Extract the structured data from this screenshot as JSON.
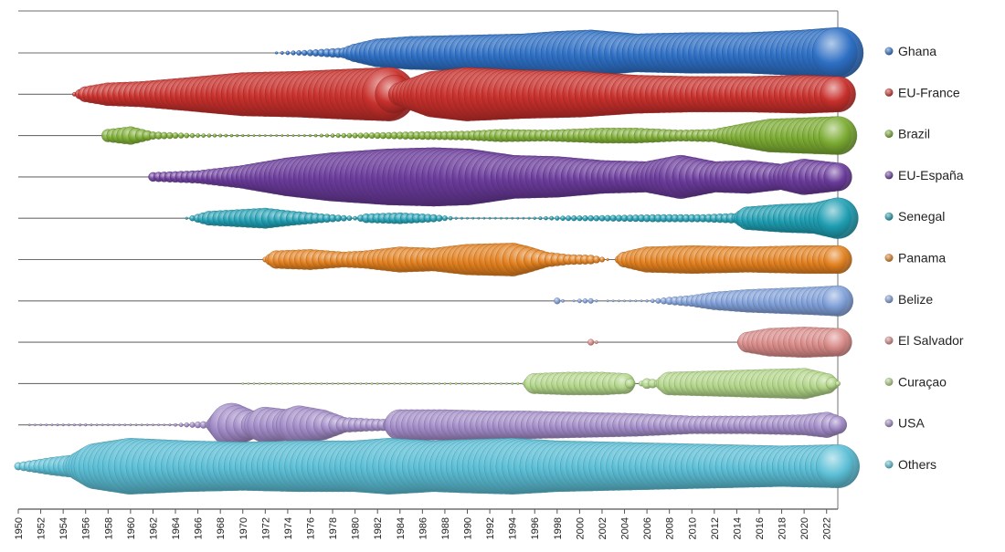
{
  "chart_data": {
    "type": "scatter",
    "title": "",
    "xlabel": "",
    "ylabel": "",
    "xlim": [
      1950,
      2023
    ],
    "x_ticks": [
      "1950",
      "1952",
      "1954",
      "1956",
      "1958",
      "1960",
      "1962",
      "1964",
      "1966",
      "1968",
      "1970",
      "1972",
      "1974",
      "1976",
      "1978",
      "1980",
      "1982",
      "1984",
      "1986",
      "1988",
      "1990",
      "1992",
      "1994",
      "1996",
      "1998",
      "2000",
      "2002",
      "2004",
      "2006",
      "2008",
      "2010",
      "2012",
      "2014",
      "2016",
      "2018",
      "2020",
      "2022"
    ],
    "legend_position": "right",
    "size_encoding": "relative magnitude (0-1)",
    "series": [
      {
        "name": "Ghana",
        "color": "#2e6fc4",
        "start": 1973,
        "end": 2023,
        "keys": [
          [
            1973,
            0.05
          ],
          [
            1976,
            0.12
          ],
          [
            1979,
            0.2
          ],
          [
            1980,
            0.35
          ],
          [
            1982,
            0.55
          ],
          [
            1985,
            0.65
          ],
          [
            1990,
            0.7
          ],
          [
            1995,
            0.75
          ],
          [
            1998,
            0.85
          ],
          [
            2001,
            0.9
          ],
          [
            2005,
            0.75
          ],
          [
            2010,
            0.8
          ],
          [
            2015,
            0.8
          ],
          [
            2020,
            0.9
          ],
          [
            2023,
            1.0
          ]
        ]
      },
      {
        "name": "EU-France",
        "color": "#c8302c",
        "start": 1955,
        "end": 2023,
        "keys": [
          [
            1955,
            0.08
          ],
          [
            1956,
            0.3
          ],
          [
            1958,
            0.45
          ],
          [
            1961,
            0.5
          ],
          [
            1965,
            0.65
          ],
          [
            1970,
            0.85
          ],
          [
            1975,
            0.9
          ],
          [
            1980,
            1.0
          ],
          [
            1983,
            1.05
          ],
          [
            1984,
            0.45
          ],
          [
            1987,
            0.9
          ],
          [
            1990,
            1.05
          ],
          [
            1995,
            0.95
          ],
          [
            2000,
            0.9
          ],
          [
            2005,
            0.75
          ],
          [
            2010,
            0.7
          ],
          [
            2015,
            0.7
          ],
          [
            2020,
            0.75
          ],
          [
            2023,
            0.7
          ]
        ]
      },
      {
        "name": "Brazil",
        "color": "#7bab32",
        "start": 1958,
        "end": 2023,
        "keys": [
          [
            1958,
            0.25
          ],
          [
            1960,
            0.35
          ],
          [
            1962,
            0.15
          ],
          [
            1966,
            0.08
          ],
          [
            1970,
            0.05
          ],
          [
            1973,
            0.03
          ],
          [
            1976,
            0.05
          ],
          [
            1980,
            0.1
          ],
          [
            1985,
            0.15
          ],
          [
            1990,
            0.18
          ],
          [
            1993,
            0.25
          ],
          [
            1997,
            0.22
          ],
          [
            2002,
            0.3
          ],
          [
            2005,
            0.3
          ],
          [
            2009,
            0.22
          ],
          [
            2012,
            0.25
          ],
          [
            2015,
            0.5
          ],
          [
            2017,
            0.65
          ],
          [
            2020,
            0.7
          ],
          [
            2023,
            0.75
          ]
        ]
      },
      {
        "name": "EU-España",
        "color": "#6a3b9b",
        "start": 1962,
        "end": 2023,
        "keys": [
          [
            1962,
            0.18
          ],
          [
            1966,
            0.25
          ],
          [
            1970,
            0.45
          ],
          [
            1974,
            0.75
          ],
          [
            1978,
            0.95
          ],
          [
            1983,
            1.1
          ],
          [
            1987,
            1.15
          ],
          [
            1990,
            1.1
          ],
          [
            1994,
            0.85
          ],
          [
            1998,
            0.8
          ],
          [
            2002,
            0.65
          ],
          [
            2006,
            0.6
          ],
          [
            2009,
            0.85
          ],
          [
            2012,
            0.6
          ],
          [
            2015,
            0.65
          ],
          [
            2018,
            0.5
          ],
          [
            2020,
            0.7
          ],
          [
            2023,
            0.55
          ]
        ]
      },
      {
        "name": "Senegal",
        "color": "#1e9db1",
        "start": 1965,
        "end": 2023,
        "keys": [
          [
            1965,
            0.05
          ],
          [
            1967,
            0.28
          ],
          [
            1970,
            0.35
          ],
          [
            1972,
            0.4
          ],
          [
            1974,
            0.3
          ],
          [
            1977,
            0.18
          ],
          [
            1980,
            0.08
          ],
          [
            1981,
            0.18
          ],
          [
            1984,
            0.22
          ],
          [
            1987,
            0.15
          ],
          [
            1989,
            0.05
          ],
          [
            1992,
            0.03
          ],
          [
            1995,
            0.04
          ],
          [
            1999,
            0.1
          ],
          [
            2003,
            0.12
          ],
          [
            2007,
            0.15
          ],
          [
            2011,
            0.15
          ],
          [
            2014,
            0.2
          ],
          [
            2015,
            0.45
          ],
          [
            2018,
            0.55
          ],
          [
            2021,
            0.6
          ],
          [
            2023,
            0.8
          ]
        ]
      },
      {
        "name": "Panama",
        "color": "#e2801f",
        "start": 1972,
        "end": 2023,
        "keys": [
          [
            1972,
            0.1
          ],
          [
            1973,
            0.35
          ],
          [
            1976,
            0.4
          ],
          [
            1979,
            0.3
          ],
          [
            1981,
            0.35
          ],
          [
            1984,
            0.5
          ],
          [
            1987,
            0.45
          ],
          [
            1990,
            0.6
          ],
          [
            1994,
            0.65
          ],
          [
            1995,
            0.55
          ],
          [
            1997,
            0.3
          ],
          [
            1999,
            0.2
          ],
          [
            2001,
            0.18
          ],
          [
            2002,
            0.1
          ],
          [
            2003,
            0.0
          ],
          [
            2004,
            0.3
          ],
          [
            2006,
            0.5
          ],
          [
            2010,
            0.55
          ],
          [
            2015,
            0.5
          ],
          [
            2020,
            0.55
          ],
          [
            2023,
            0.55
          ]
        ]
      },
      {
        "name": "Belize",
        "color": "#7f9fd8",
        "start": 1998,
        "end": 2023,
        "keys": [
          [
            1998,
            0.12
          ],
          [
            1999,
            0.0
          ],
          [
            2000,
            0.08
          ],
          [
            2001,
            0.1
          ],
          [
            2002,
            0.0
          ],
          [
            2006,
            0.05
          ],
          [
            2008,
            0.15
          ],
          [
            2010,
            0.22
          ],
          [
            2012,
            0.35
          ],
          [
            2015,
            0.45
          ],
          [
            2018,
            0.5
          ],
          [
            2021,
            0.55
          ],
          [
            2023,
            0.6
          ]
        ]
      },
      {
        "name": "El Salvador",
        "color": "#d88a88",
        "start": 2001,
        "end": 2023,
        "keys": [
          [
            2001,
            0.12
          ],
          [
            2002,
            0.0
          ],
          [
            2014,
            0.0
          ],
          [
            2015,
            0.4
          ],
          [
            2017,
            0.55
          ],
          [
            2020,
            0.6
          ],
          [
            2023,
            0.55
          ]
        ]
      },
      {
        "name": "Curaçao",
        "color": "#b1d588",
        "start": 1970,
        "end": 2023,
        "keys": [
          [
            1970,
            0.02
          ],
          [
            1990,
            0.03
          ],
          [
            1995,
            0.05
          ],
          [
            1996,
            0.4
          ],
          [
            1999,
            0.45
          ],
          [
            2002,
            0.45
          ],
          [
            2004,
            0.4
          ],
          [
            2005,
            0.0
          ],
          [
            2006,
            0.2
          ],
          [
            2007,
            0.15
          ],
          [
            2008,
            0.45
          ],
          [
            2012,
            0.5
          ],
          [
            2016,
            0.55
          ],
          [
            2020,
            0.6
          ],
          [
            2022,
            0.4
          ],
          [
            2023,
            0.1
          ]
        ]
      },
      {
        "name": "USA",
        "color": "#a18bc7",
        "start": 1951,
        "end": 2023,
        "keys": [
          [
            1951,
            0.04
          ],
          [
            1956,
            0.05
          ],
          [
            1960,
            0.02
          ],
          [
            1963,
            0.03
          ],
          [
            1967,
            0.15
          ],
          [
            1969,
            0.85
          ],
          [
            1971,
            0.5
          ],
          [
            1972,
            0.7
          ],
          [
            1974,
            0.6
          ],
          [
            1975,
            0.75
          ],
          [
            1977,
            0.6
          ],
          [
            1979,
            0.3
          ],
          [
            1981,
            0.25
          ],
          [
            1983,
            0.22
          ],
          [
            1984,
            0.6
          ],
          [
            1988,
            0.6
          ],
          [
            1992,
            0.55
          ],
          [
            1995,
            0.55
          ],
          [
            2000,
            0.5
          ],
          [
            2005,
            0.45
          ],
          [
            2010,
            0.35
          ],
          [
            2015,
            0.35
          ],
          [
            2020,
            0.4
          ],
          [
            2022,
            0.5
          ],
          [
            2023,
            0.35
          ]
        ]
      },
      {
        "name": "Others",
        "color": "#5cbfd6",
        "start": 1950,
        "end": 2023,
        "keys": [
          [
            1950,
            0.15
          ],
          [
            1953,
            0.35
          ],
          [
            1955,
            0.45
          ],
          [
            1957,
            0.9
          ],
          [
            1960,
            1.1
          ],
          [
            1965,
            1.0
          ],
          [
            1970,
            0.95
          ],
          [
            1975,
            1.0
          ],
          [
            1980,
            1.0
          ],
          [
            1983,
            1.1
          ],
          [
            1987,
            1.0
          ],
          [
            1990,
            1.05
          ],
          [
            1994,
            1.1
          ],
          [
            1998,
            1.0
          ],
          [
            2003,
            0.95
          ],
          [
            2008,
            0.9
          ],
          [
            2013,
            0.85
          ],
          [
            2018,
            0.8
          ],
          [
            2023,
            0.85
          ]
        ]
      }
    ]
  }
}
